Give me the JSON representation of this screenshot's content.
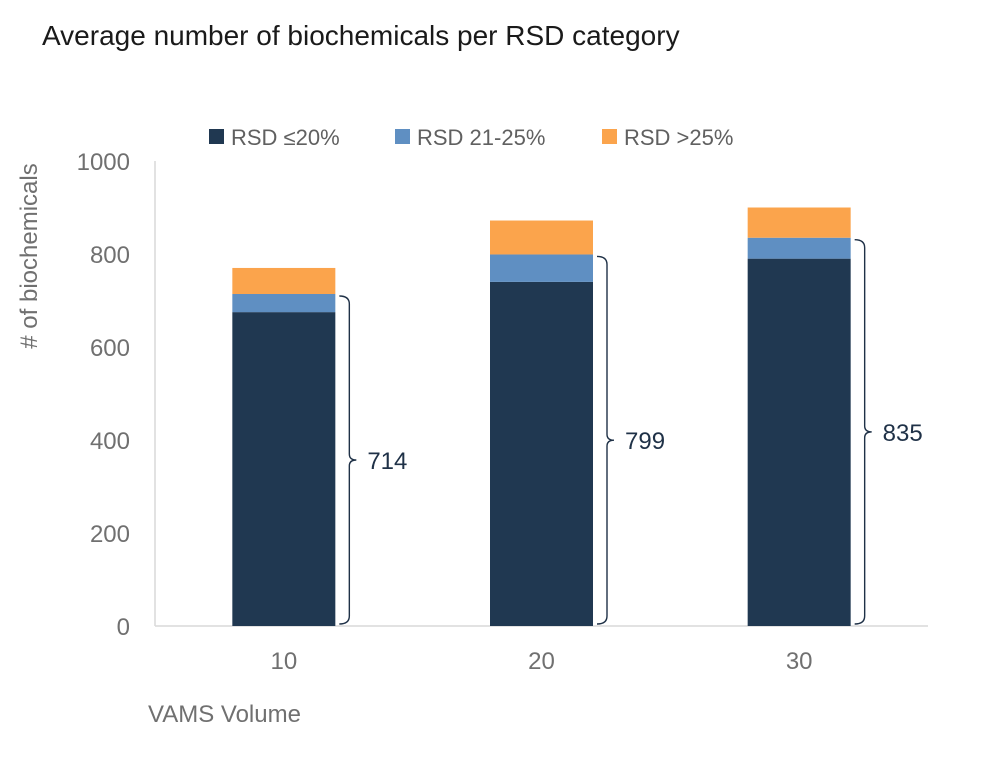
{
  "chart_data": {
    "type": "bar",
    "stacked": true,
    "title": "Average number of biochemicals per RSD category",
    "xlabel": "VAMS Volume",
    "ylabel": "# of biochemicals",
    "categories": [
      "10",
      "20",
      "30"
    ],
    "series": [
      {
        "name": "RSD ≤20%",
        "color": "#203851",
        "values": [
          675,
          740,
          790
        ]
      },
      {
        "name": "RSD 21-25%",
        "color": "#5f8fc2",
        "values": [
          39,
          59,
          45
        ]
      },
      {
        "name": "RSD >25%",
        "color": "#fba44c",
        "values": [
          56,
          73,
          65
        ]
      }
    ],
    "ylim": [
      0,
      1000
    ],
    "yticks": [
      "0",
      "200",
      "400",
      "600",
      "800",
      "1000"
    ],
    "ytick_values": [
      0,
      200,
      400,
      600,
      800,
      1000
    ],
    "bracket_totals": [
      714,
      799,
      835
    ],
    "bracket_labels": [
      "714",
      "799",
      "835"
    ],
    "grid": false,
    "legend_position": "top"
  }
}
